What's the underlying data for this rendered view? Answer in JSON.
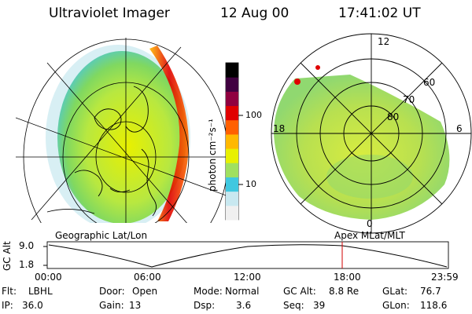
{
  "header": {
    "instrument": "Ultraviolet Imager",
    "date": "12 Aug 00",
    "time": "17:41:02 UT"
  },
  "colorbar": {
    "unit_label": "photon cm⁻²s⁻¹",
    "ticks": [
      "100",
      "10"
    ],
    "colors": [
      "#f0f0f0",
      "#c8e8f0",
      "#40c8e0",
      "#a0e060",
      "#e8f000",
      "#ffb800",
      "#ff6000",
      "#e00000",
      "#900040",
      "#400040",
      "#000000"
    ]
  },
  "left_map": {
    "caption": "Geographic Lat/Lon"
  },
  "right_map": {
    "caption": "Apex MLat/MLT",
    "mlt_labels": {
      "top": "12",
      "left": "18",
      "right": "6",
      "bottom": "0"
    },
    "lat_labels": [
      "60",
      "70",
      "80"
    ]
  },
  "altitude_plot": {
    "ylabel": "GC Alt",
    "yticks": [
      "9.0",
      "1.8"
    ],
    "xticks": [
      "00:00",
      "06:00",
      "12:00",
      "18:00",
      "23:59"
    ],
    "marker_color": "#d00000"
  },
  "status": {
    "row1": {
      "flt_label": "Flt:",
      "flt": "LBHL",
      "door_label": "Door:",
      "door": "Open",
      "mode_label": "Mode:",
      "mode": "Normal",
      "gcalt_label": "GC Alt:",
      "gcalt": "8.8 Re",
      "glat_label": "GLat:",
      "glat": "76.7"
    },
    "row2": {
      "ip_label": "IP:",
      "ip": "36.0",
      "gain_label": "Gain:",
      "gain": "13",
      "dsp_label": "Dsp:",
      "dsp": "3.6",
      "seq_label": "Seq:",
      "seq": "39",
      "glon_label": "GLon:",
      "glon": "118.6"
    }
  }
}
